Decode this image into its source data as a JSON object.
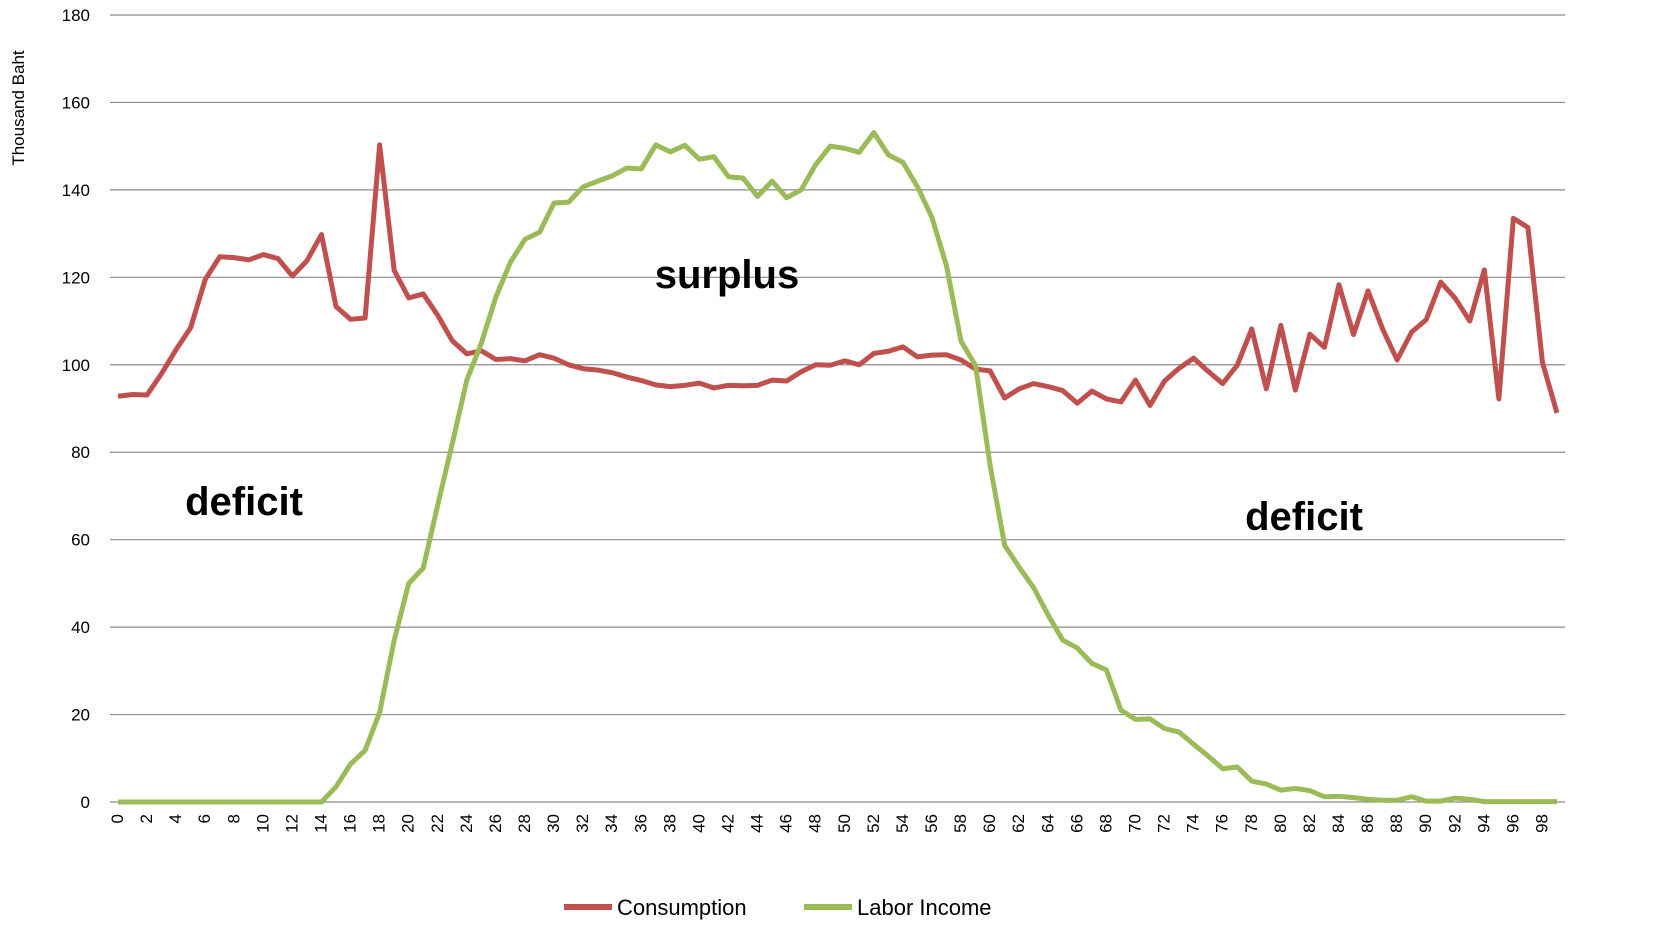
{
  "chart_data": {
    "type": "line",
    "y_label": "Thousand Baht",
    "x": [
      0,
      1,
      2,
      3,
      4,
      5,
      6,
      7,
      8,
      9,
      10,
      11,
      12,
      13,
      14,
      15,
      16,
      17,
      18,
      19,
      20,
      21,
      22,
      23,
      24,
      25,
      26,
      27,
      28,
      29,
      30,
      31,
      32,
      33,
      34,
      35,
      36,
      37,
      38,
      39,
      40,
      41,
      42,
      43,
      44,
      45,
      46,
      47,
      48,
      49,
      50,
      51,
      52,
      53,
      54,
      55,
      56,
      57,
      58,
      59,
      60,
      61,
      62,
      63,
      64,
      65,
      66,
      67,
      68,
      69,
      70,
      71,
      72,
      73,
      74,
      75,
      76,
      77,
      78,
      79,
      80,
      81,
      82,
      83,
      84,
      85,
      86,
      87,
      88,
      89,
      90,
      91,
      92,
      93,
      94,
      95,
      96,
      97,
      98,
      99
    ],
    "xlim": [
      0,
      99
    ],
    "xticks": [
      0,
      2,
      4,
      6,
      8,
      10,
      12,
      14,
      16,
      18,
      20,
      22,
      24,
      26,
      28,
      30,
      32,
      34,
      36,
      38,
      40,
      42,
      44,
      46,
      48,
      50,
      52,
      54,
      56,
      58,
      60,
      62,
      64,
      66,
      68,
      70,
      72,
      74,
      76,
      78,
      80,
      82,
      84,
      86,
      88,
      90,
      92,
      94,
      96,
      98
    ],
    "ylim": [
      0,
      180
    ],
    "yticks": [
      0,
      20,
      40,
      60,
      80,
      100,
      120,
      140,
      160,
      180
    ],
    "grid": true,
    "legend": "bottom",
    "series": [
      {
        "name": "Consumption",
        "color": "#c0504d",
        "values": [
          92.8,
          93.2,
          93.1,
          98,
          103.5,
          108.5,
          119.5,
          124.7,
          124.5,
          124,
          125.2,
          124.3,
          120.3,
          123.8,
          129.8,
          113.3,
          110.4,
          110.7,
          150.3,
          121.6,
          115.3,
          116.2,
          111.3,
          105.5,
          102.5,
          103.2,
          101.2,
          101.4,
          100.9,
          102.3,
          101.5,
          100,
          99.1,
          98.8,
          98.2,
          97.2,
          96.4,
          95.4,
          95,
          95.3,
          95.8,
          94.7,
          95.3,
          95.2,
          95.3,
          96.5,
          96.3,
          98.4,
          100,
          99.9,
          100.9,
          100,
          102.6,
          103.1,
          104.1,
          101.8,
          102.2,
          102.3,
          101.1,
          99,
          98.6,
          92.4,
          94.5,
          95.7,
          95,
          94.1,
          91.2,
          94,
          92.2,
          91.5,
          96.5,
          90.7,
          96.3,
          99.2,
          101.5,
          98.5,
          95.7,
          99.9,
          108.2,
          94.5,
          109,
          94.2,
          107,
          104,
          118.3,
          106.9,
          116.9,
          108.2,
          101.1,
          107.5,
          110.3,
          118.9,
          115.2,
          110,
          121.7,
          92.2,
          133.5,
          131.4,
          100.5,
          89
        ]
      },
      {
        "name": "Labor Income",
        "color": "#9bbb59",
        "values": [
          0,
          0,
          0,
          0,
          0,
          0,
          0,
          0,
          0,
          0,
          0,
          0,
          0,
          0,
          0,
          3.5,
          8.7,
          11.8,
          20.5,
          37,
          50,
          53.5,
          68,
          82,
          96.5,
          105,
          115.5,
          123.5,
          128.7,
          130.3,
          137,
          137.2,
          140.7,
          142,
          143.2,
          145,
          144.8,
          150.3,
          148.7,
          150.2,
          147,
          147.6,
          143,
          142.7,
          138.5,
          142,
          138.2,
          140,
          145.8,
          150,
          149.5,
          148.6,
          153.1,
          148,
          146.3,
          140.7,
          133.7,
          122.6,
          105.4,
          99.8,
          77,
          58.7,
          53.7,
          49,
          42.7,
          37,
          35.2,
          31.7,
          30.2,
          21,
          18.9,
          19,
          16.8,
          16,
          13.2,
          10.5,
          7.6,
          8,
          4.8,
          4.1,
          2.7,
          3.1,
          2.6,
          1.2,
          1.3,
          1,
          0.6,
          0.4,
          0.4,
          1.2,
          0.2,
          0.2,
          0.9,
          0.6,
          0.1,
          0.1,
          0.1,
          0.1,
          0.1,
          0.1
        ]
      }
    ],
    "annotations": [
      {
        "text": "deficit",
        "color": "#ff0000"
      },
      {
        "text": "surplus",
        "color": "#0000ff"
      },
      {
        "text": "deficit",
        "color": "#ff0000"
      }
    ]
  }
}
